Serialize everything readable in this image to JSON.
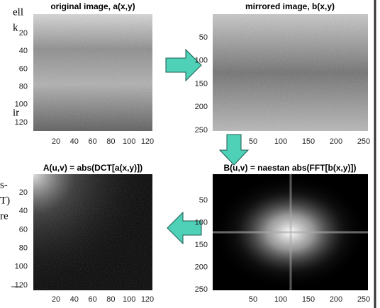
{
  "panels": [
    {
      "title": "original image, a(x,y)",
      "xticks": [
        20,
        40,
        60,
        80,
        100,
        120
      ],
      "yticks": [
        20,
        40,
        60,
        80,
        100,
        120
      ]
    },
    {
      "title": "mirrored image, b(x,y)",
      "xticks": [
        50,
        100,
        150,
        200,
        250
      ],
      "yticks": [
        50,
        100,
        150,
        200,
        250
      ]
    },
    {
      "title": "A(u,v) = abs(DCT[a(x,y)])",
      "xticks": [
        20,
        40,
        60,
        80,
        100,
        120
      ],
      "yticks": [
        20,
        40,
        60,
        80,
        100,
        120
      ]
    },
    {
      "title": "B(u,v) = naestan abs(FFT[b(x,y)])",
      "xticks": [
        50,
        100,
        150,
        200,
        250
      ],
      "yticks": [
        50,
        100,
        150,
        200,
        250
      ]
    }
  ],
  "fragments": [
    "ell",
    "k",
    "ir",
    "s-",
    "T)",
    "re"
  ]
}
